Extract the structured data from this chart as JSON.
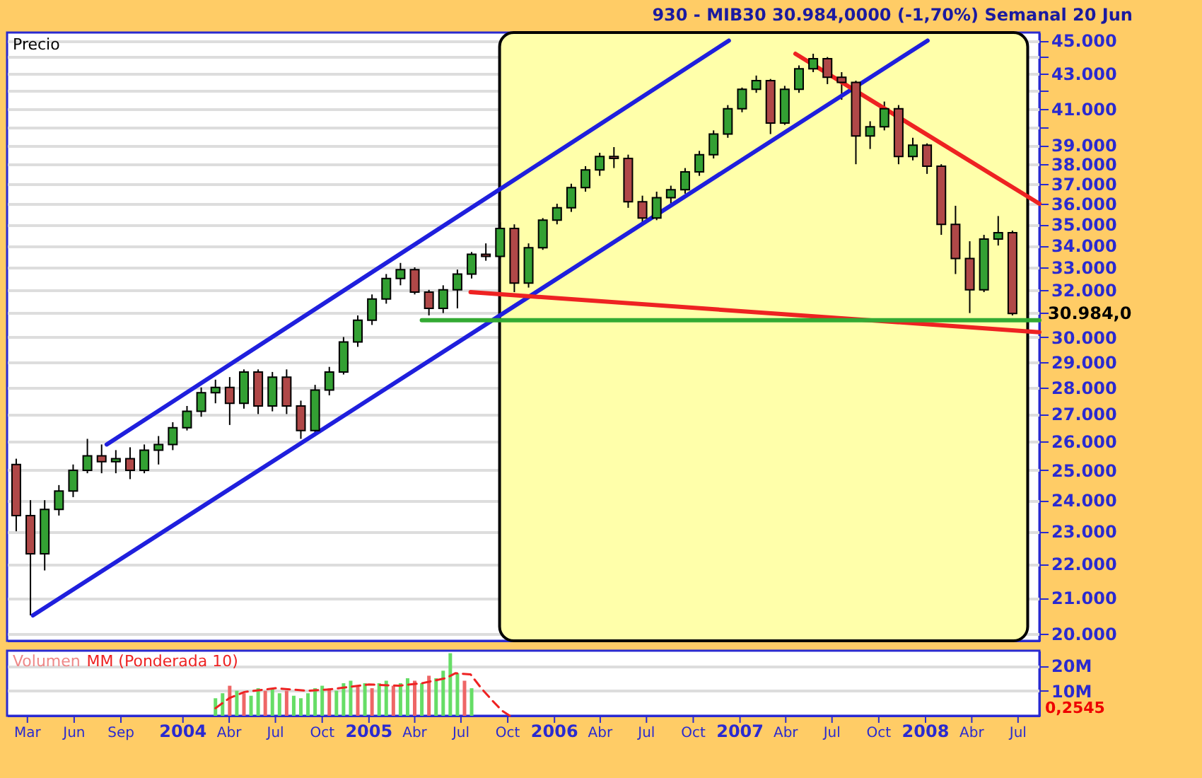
{
  "chart_data": [
    {
      "type": "candlestick",
      "title": "930 - MIB30    30.984,0000 (-1,70%)    Semanal  20 Jun",
      "ylabel": "Precio",
      "x": [
        "2003-02-07",
        "2003-03-07",
        "2003-04-04",
        "2003-05-02",
        "2003-05-30",
        "2003-06-27",
        "2003-07-25",
        "2003-08-22",
        "2003-09-19",
        "2003-10-17",
        "2003-11-14",
        "2003-12-12",
        "2004-01-09",
        "2004-02-06",
        "2004-03-05",
        "2004-04-02",
        "2004-04-30",
        "2004-05-28",
        "2004-06-25",
        "2004-07-23",
        "2004-08-20",
        "2004-09-17",
        "2004-10-15",
        "2004-11-12",
        "2004-12-10",
        "2005-01-07",
        "2005-02-04",
        "2005-03-04",
        "2005-04-01",
        "2005-04-29",
        "2005-05-27",
        "2005-06-24",
        "2005-07-22",
        "2005-08-19",
        "2005-09-16",
        "2005-10-14",
        "2005-11-11",
        "2005-12-09",
        "2006-01-06",
        "2006-02-03",
        "2006-03-03",
        "2006-03-31",
        "2006-04-28",
        "2006-05-26",
        "2006-06-23",
        "2006-07-21",
        "2006-08-18",
        "2006-09-15",
        "2006-10-13",
        "2006-11-10",
        "2006-12-08",
        "2007-01-05",
        "2007-02-02",
        "2007-03-02",
        "2007-03-30",
        "2007-04-27",
        "2007-05-25",
        "2007-06-22",
        "2007-07-20",
        "2007-08-17",
        "2007-09-14",
        "2007-10-12",
        "2007-11-09",
        "2007-12-07",
        "2008-01-04",
        "2008-02-01",
        "2008-02-29",
        "2008-03-28",
        "2008-04-25",
        "2008-05-23",
        "2008-06-20"
      ],
      "ohlc": [
        [
          25200,
          25400,
          23000,
          23500
        ],
        [
          23500,
          24000,
          20500,
          22300
        ],
        [
          22300,
          24000,
          21800,
          23700
        ],
        [
          23700,
          24500,
          23500,
          24300
        ],
        [
          24300,
          25200,
          24100,
          25000
        ],
        [
          25000,
          26100,
          24900,
          25500
        ],
        [
          25500,
          25900,
          24900,
          25300
        ],
        [
          25300,
          25700,
          24900,
          25400
        ],
        [
          25400,
          25800,
          24700,
          25000
        ],
        [
          25000,
          25900,
          24900,
          25700
        ],
        [
          25700,
          26200,
          25200,
          25900
        ],
        [
          25900,
          26700,
          25700,
          26500
        ],
        [
          26500,
          27300,
          26400,
          27100
        ],
        [
          27100,
          28000,
          26900,
          27800
        ],
        [
          27800,
          28300,
          27400,
          28000
        ],
        [
          28000,
          28400,
          26600,
          27400
        ],
        [
          27400,
          28700,
          27200,
          28600
        ],
        [
          28600,
          28700,
          27000,
          27300
        ],
        [
          27300,
          28600,
          27100,
          28400
        ],
        [
          28400,
          28700,
          27000,
          27300
        ],
        [
          27300,
          27500,
          26100,
          26400
        ],
        [
          26400,
          28100,
          26300,
          27900
        ],
        [
          27900,
          28800,
          27700,
          28600
        ],
        [
          28600,
          30000,
          28500,
          29800
        ],
        [
          29800,
          30900,
          29600,
          30700
        ],
        [
          30700,
          31800,
          30500,
          31600
        ],
        [
          31600,
          32700,
          31400,
          32500
        ],
        [
          32500,
          33200,
          32200,
          32900
        ],
        [
          32900,
          33000,
          31800,
          31900
        ],
        [
          31900,
          32000,
          30900,
          31200
        ],
        [
          31200,
          32200,
          31000,
          32000
        ],
        [
          32000,
          32900,
          31200,
          32700
        ],
        [
          32700,
          33700,
          32500,
          33600
        ],
        [
          33600,
          34100,
          33300,
          33500
        ],
        [
          33500,
          35100,
          33400,
          34800
        ],
        [
          34800,
          35000,
          31900,
          32300
        ],
        [
          32300,
          34100,
          32100,
          33900
        ],
        [
          33900,
          35300,
          33800,
          35200
        ],
        [
          35200,
          36000,
          35000,
          35800
        ],
        [
          35800,
          37000,
          35600,
          36800
        ],
        [
          36800,
          37900,
          36600,
          37700
        ],
        [
          37700,
          38600,
          37400,
          38400
        ],
        [
          38400,
          38900,
          37800,
          38300
        ],
        [
          38300,
          38500,
          35800,
          36100
        ],
        [
          36100,
          36400,
          35000,
          35300
        ],
        [
          35300,
          36600,
          35200,
          36300
        ],
        [
          36300,
          36900,
          35900,
          36700
        ],
        [
          36700,
          37800,
          36500,
          37600
        ],
        [
          37600,
          38700,
          37400,
          38500
        ],
        [
          38500,
          39800,
          38300,
          39600
        ],
        [
          39600,
          41200,
          39400,
          41000
        ],
        [
          41000,
          42200,
          40800,
          42100
        ],
        [
          42100,
          42900,
          41900,
          42600
        ],
        [
          42600,
          42700,
          39600,
          40200
        ],
        [
          40200,
          42300,
          40100,
          42100
        ],
        [
          42100,
          43500,
          41900,
          43300
        ],
        [
          43300,
          44200,
          43100,
          43900
        ],
        [
          43900,
          44000,
          42400,
          42800
        ],
        [
          42800,
          43100,
          41500,
          42500
        ],
        [
          42500,
          42600,
          38000,
          39500
        ],
        [
          39500,
          40300,
          38800,
          40000
        ],
        [
          40000,
          41400,
          39800,
          41000
        ],
        [
          41000,
          41200,
          38000,
          38400
        ],
        [
          38400,
          39400,
          38200,
          39000
        ],
        [
          39000,
          39100,
          37500,
          37900
        ],
        [
          37900,
          38000,
          34500,
          35000
        ],
        [
          35000,
          35900,
          32700,
          33400
        ],
        [
          33400,
          34200,
          31000,
          32000
        ],
        [
          32000,
          34500,
          31900,
          34300
        ],
        [
          34300,
          35400,
          34000,
          34600
        ],
        [
          34600,
          34700,
          30900,
          30984
        ]
      ],
      "colors": [
        "#b04848",
        "#b04848",
        "#33a033",
        "#33a033",
        "#33a033",
        "#33a033",
        "#b04848",
        "#33a033",
        "#b04848",
        "#33a033",
        "#33a033",
        "#33a033",
        "#33a033",
        "#33a033",
        "#33a033",
        "#b04848",
        "#33a033",
        "#b04848",
        "#33a033",
        "#b04848",
        "#b04848",
        "#33a033",
        "#33a033",
        "#33a033",
        "#33a033",
        "#33a033",
        "#33a033",
        "#33a033",
        "#b04848",
        "#b04848",
        "#33a033",
        "#33a033",
        "#33a033",
        "#b04848",
        "#33a033",
        "#b04848",
        "#33a033",
        "#33a033",
        "#33a033",
        "#33a033",
        "#33a033",
        "#33a033",
        "#b04848",
        "#b04848",
        "#b04848",
        "#33a033",
        "#33a033",
        "#33a033",
        "#33a033",
        "#33a033",
        "#33a033",
        "#33a033",
        "#33a033",
        "#b04848",
        "#33a033",
        "#33a033",
        "#33a033",
        "#b04848",
        "#b04848",
        "#b04848",
        "#33a033",
        "#33a033",
        "#b04848",
        "#33a033",
        "#b04848",
        "#b04848",
        "#b04848",
        "#b04848",
        "#33a033",
        "#33a033",
        "#b04848"
      ],
      "series": [
        {
          "type": "line",
          "color": "#1f1fdd",
          "x": [
            "2003-08-04",
            "2006-12-10"
          ],
          "values": [
            25900,
            45000
          ]
        },
        {
          "type": "line",
          "color": "#1f1fdd",
          "x": [
            "2003-03-12",
            "2008-01-05"
          ],
          "values": [
            20500,
            45000
          ]
        },
        {
          "type": "line",
          "color": "#ee2222",
          "x": [
            "2007-04-20",
            "2008-08-12"
          ],
          "values": [
            44200,
            36000
          ]
        },
        {
          "type": "line",
          "color": "#ee2222",
          "x": [
            "2005-07-20",
            "2008-08-12"
          ],
          "values": [
            31900,
            30200
          ]
        },
        {
          "type": "line",
          "color": "#33aa33",
          "x": [
            "2005-04-15",
            "2008-08-12"
          ],
          "values": [
            30700,
            30700
          ]
        }
      ],
      "bands": [
        {
          "axis": "x",
          "from": "2005-09-15",
          "to": "2008-07-20",
          "color": "#ffffaa"
        }
      ],
      "annotations": [
        "30.984,0"
      ],
      "xlim": [
        "2003-01-20",
        "2008-08-12"
      ],
      "ylim": [
        19800,
        45500
      ],
      "log": true,
      "yticks": [
        {
          "value": 20000,
          "label": "20.000"
        },
        {
          "value": 21000,
          "label": "21.000"
        },
        {
          "value": 22000,
          "label": "22.000"
        },
        {
          "value": 23000,
          "label": "23.000"
        },
        {
          "value": 24000,
          "label": "24.000"
        },
        {
          "value": 25000,
          "label": "25.000"
        },
        {
          "value": 26000,
          "label": "26.000"
        },
        {
          "value": 27000,
          "label": "27.000"
        },
        {
          "value": 28000,
          "label": "28.000"
        },
        {
          "value": 29000,
          "label": "29.000"
        },
        {
          "value": 30000,
          "label": "30.000"
        },
        {
          "value": 31000,
          "label": null
        },
        {
          "value": 32000,
          "label": "32.000"
        },
        {
          "value": 33000,
          "label": "33.000"
        },
        {
          "value": 34000,
          "label": "34.000"
        },
        {
          "value": 35000,
          "label": "35.000"
        },
        {
          "value": 36000,
          "label": "36.000"
        },
        {
          "value": 37000,
          "label": "37.000"
        },
        {
          "value": 38000,
          "label": "38.000"
        },
        {
          "value": 39000,
          "label": "39.000"
        },
        {
          "value": 40000,
          "label": null
        },
        {
          "value": 41000,
          "label": "41.000"
        },
        {
          "value": 42000,
          "label": null
        },
        {
          "value": 43000,
          "label": "43.000"
        },
        {
          "value": 44000,
          "label": null
        },
        {
          "value": 45000,
          "label": "45.000"
        }
      ],
      "grid": "y",
      "tick_labels": "y"
    },
    {
      "type": "bar",
      "series": [
        {
          "name": "Volumen",
          "color": "#ee8888",
          "x": [
            "2004-03-05",
            "2004-03-19",
            "2004-04-02",
            "2004-04-16",
            "2004-04-30",
            "2004-05-14",
            "2004-05-28",
            "2004-06-11",
            "2004-06-25",
            "2004-07-09",
            "2004-07-23",
            "2004-08-06",
            "2004-08-20",
            "2004-09-03",
            "2004-09-17",
            "2004-10-01",
            "2004-10-15",
            "2004-10-29",
            "2004-11-12",
            "2004-11-26",
            "2004-12-10",
            "2004-12-24",
            "2005-01-07",
            "2005-01-21",
            "2005-02-04",
            "2005-02-18",
            "2005-03-04",
            "2005-03-18",
            "2005-04-01",
            "2005-04-15",
            "2005-04-29",
            "2005-05-13",
            "2005-05-27",
            "2005-06-10",
            "2005-06-24",
            "2005-07-08",
            "2005-07-22"
          ],
          "values": [
            7,
            9,
            12,
            10,
            9,
            8,
            11,
            10,
            11,
            9,
            10,
            8,
            7,
            9,
            11,
            12,
            11,
            10,
            13,
            14,
            12,
            13,
            11,
            13,
            14,
            12,
            13,
            15,
            14,
            13,
            16,
            15,
            18,
            25,
            17,
            14,
            11
          ],
          "colors": [
            "#66dd66",
            "#66dd66",
            "#ee6666",
            "#66dd66",
            "#ee6666",
            "#66dd66",
            "#66dd66",
            "#ee6666",
            "#66dd66",
            "#66dd66",
            "#ee6666",
            "#66dd66",
            "#66dd66",
            "#66dd66",
            "#66dd66",
            "#66dd66",
            "#ee6666",
            "#66dd66",
            "#66dd66",
            "#66dd66",
            "#ee6666",
            "#66dd66",
            "#ee6666",
            "#66dd66",
            "#66dd66",
            "#ee6666",
            "#66dd66",
            "#66dd66",
            "#ee6666",
            "#66dd66",
            "#ee6666",
            "#66dd66",
            "#66dd66",
            "#66dd66",
            "#66dd66",
            "#ee6666",
            "#66dd66"
          ]
        },
        {
          "name": "MM (Ponderada 10)",
          "type": "line",
          "color": "#ee2222",
          "line_style": "dashed",
          "x": [
            "2004-03-05",
            "2004-04-01",
            "2004-05-01",
            "2004-07-01",
            "2004-09-01",
            "2004-10-15",
            "2005-01-01",
            "2005-03-01",
            "2005-04-15",
            "2005-06-01",
            "2005-06-20",
            "2005-07-20",
            "2005-08-10",
            "2005-09-01",
            "2005-09-20",
            "2005-10-05"
          ],
          "values": [
            3,
            7,
            9.5,
            11,
            10,
            10.5,
            12.5,
            12,
            13,
            15,
            17,
            16.5,
            11,
            6,
            2,
            0
          ]
        }
      ],
      "annotations": [
        "0,2545"
      ],
      "xlim": [
        "2003-01-20",
        "2008-08-12"
      ],
      "ylim": [
        0,
        26
      ],
      "yticks": [
        {
          "value": 10,
          "label": "10M"
        },
        {
          "value": 20,
          "label": "20M"
        }
      ],
      "xticks": [
        {
          "value": "2003-03-01",
          "label": "Mar"
        },
        {
          "value": "2003-06-01",
          "label": "Jun"
        },
        {
          "value": "2003-09-01",
          "label": "Sep"
        },
        {
          "value": "2004-01-01",
          "label": "2004"
        },
        {
          "value": "2004-04-01",
          "label": "Abr"
        },
        {
          "value": "2004-07-01",
          "label": "Jul"
        },
        {
          "value": "2004-10-01",
          "label": "Oct"
        },
        {
          "value": "2005-01-01",
          "label": "2005"
        },
        {
          "value": "2005-04-01",
          "label": "Abr"
        },
        {
          "value": "2005-07-01",
          "label": "Jul"
        },
        {
          "value": "2005-10-01",
          "label": "Oct"
        },
        {
          "value": "2006-01-01",
          "label": "2006"
        },
        {
          "value": "2006-04-01",
          "label": "Abr"
        },
        {
          "value": "2006-07-01",
          "label": "Jul"
        },
        {
          "value": "2006-10-01",
          "label": "Oct"
        },
        {
          "value": "2007-01-01",
          "label": "2007"
        },
        {
          "value": "2007-04-01",
          "label": "Abr"
        },
        {
          "value": "2007-07-01",
          "label": "Jul"
        },
        {
          "value": "2007-10-01",
          "label": "Oct"
        },
        {
          "value": "2008-01-01",
          "label": "2008"
        },
        {
          "value": "2008-04-01",
          "label": "Abr"
        },
        {
          "value": "2008-07-01",
          "label": "Jul"
        }
      ],
      "grid": "y"
    }
  ]
}
